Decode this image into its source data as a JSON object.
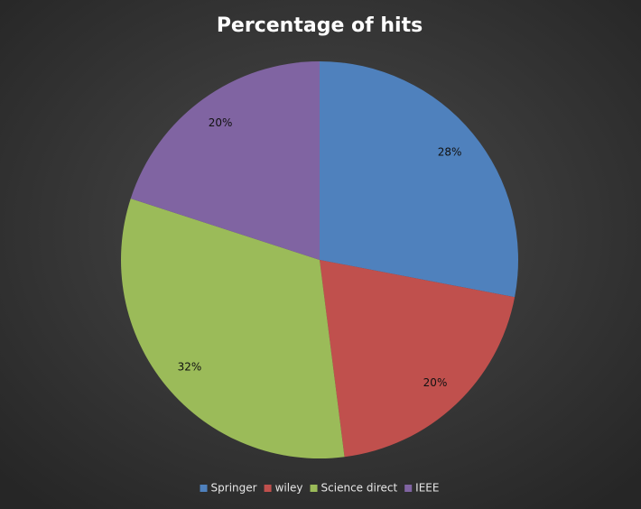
{
  "chart_data": {
    "type": "pie",
    "title": "Percentage of hits",
    "categories": [
      "Springer",
      "wiley",
      "Science direct",
      "IEEE"
    ],
    "values": [
      28,
      20,
      32,
      20
    ],
    "value_labels": [
      "28%",
      "20%",
      "32%",
      "20%"
    ],
    "colors": [
      "#4f81bd",
      "#c0504d",
      "#9bbb59",
      "#8064a2"
    ],
    "legend": "bottom"
  }
}
